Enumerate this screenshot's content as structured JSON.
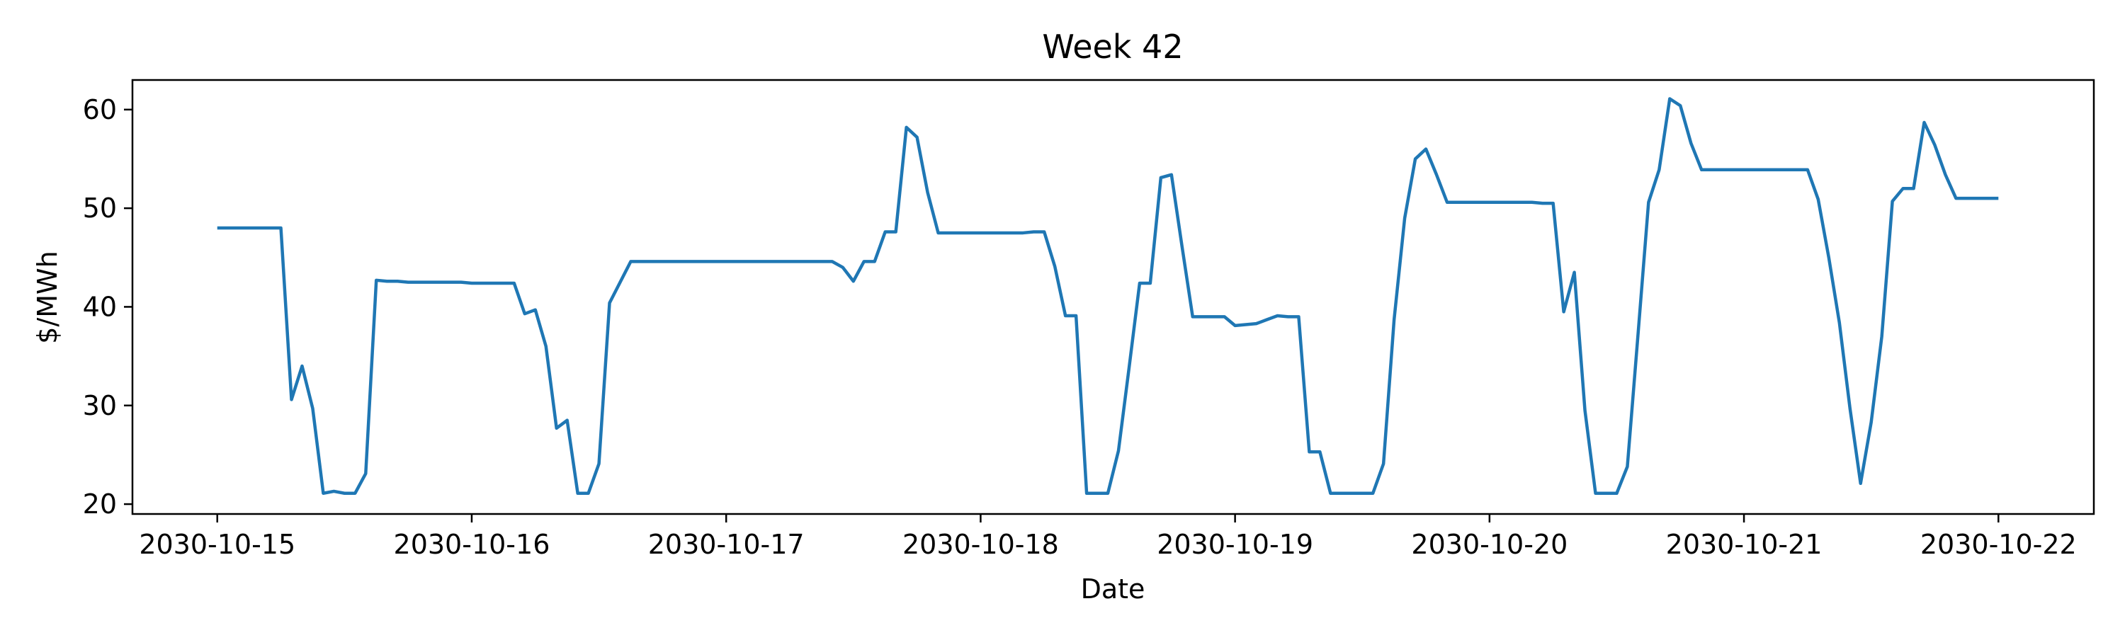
{
  "chart_data": {
    "type": "line",
    "title": "Week 42",
    "xlabel": "Date",
    "ylabel": "$/MWh",
    "x_tick_labels": [
      "2030-10-15",
      "2030-10-16",
      "2030-10-17",
      "2030-10-18",
      "2030-10-19",
      "2030-10-20",
      "2030-10-21",
      "2030-10-22"
    ],
    "y_ticks": [
      20,
      30,
      40,
      50,
      60
    ],
    "xlim": [
      "2030-10-14 16:00",
      "2030-10-22 09:00"
    ],
    "ylim": [
      19.0,
      63.0
    ],
    "grid": false,
    "colors": {
      "line": "#1f77b4",
      "axes": "#000000",
      "background": "#ffffff"
    },
    "series": [
      {
        "x": [
          "2030-10-15 00:00",
          "2030-10-15 01:00",
          "2030-10-15 02:00",
          "2030-10-15 03:00",
          "2030-10-15 04:00",
          "2030-10-15 05:00",
          "2030-10-15 06:00",
          "2030-10-15 07:00",
          "2030-10-15 08:00",
          "2030-10-15 09:00",
          "2030-10-15 10:00",
          "2030-10-15 11:00",
          "2030-10-15 12:00",
          "2030-10-15 13:00",
          "2030-10-15 14:00",
          "2030-10-15 15:00",
          "2030-10-15 16:00",
          "2030-10-15 17:00",
          "2030-10-15 18:00",
          "2030-10-15 19:00",
          "2030-10-15 20:00",
          "2030-10-15 21:00",
          "2030-10-15 22:00",
          "2030-10-15 23:00",
          "2030-10-16 00:00",
          "2030-10-16 01:00",
          "2030-10-16 02:00",
          "2030-10-16 03:00",
          "2030-10-16 04:00",
          "2030-10-16 05:00",
          "2030-10-16 06:00",
          "2030-10-16 07:00",
          "2030-10-16 08:00",
          "2030-10-16 09:00",
          "2030-10-16 10:00",
          "2030-10-16 11:00",
          "2030-10-16 12:00",
          "2030-10-16 13:00",
          "2030-10-16 14:00",
          "2030-10-16 15:00",
          "2030-10-16 16:00",
          "2030-10-16 17:00",
          "2030-10-16 18:00",
          "2030-10-16 19:00",
          "2030-10-16 20:00",
          "2030-10-16 21:00",
          "2030-10-16 22:00",
          "2030-10-16 23:00",
          "2030-10-17 00:00",
          "2030-10-17 01:00",
          "2030-10-17 02:00",
          "2030-10-17 03:00",
          "2030-10-17 04:00",
          "2030-10-17 05:00",
          "2030-10-17 06:00",
          "2030-10-17 07:00",
          "2030-10-17 08:00",
          "2030-10-17 09:00",
          "2030-10-17 10:00",
          "2030-10-17 11:00",
          "2030-10-17 12:00",
          "2030-10-17 13:00",
          "2030-10-17 14:00",
          "2030-10-17 15:00",
          "2030-10-17 16:00",
          "2030-10-17 17:00",
          "2030-10-17 18:00",
          "2030-10-17 19:00",
          "2030-10-17 20:00",
          "2030-10-17 21:00",
          "2030-10-17 22:00",
          "2030-10-17 23:00",
          "2030-10-18 00:00",
          "2030-10-18 01:00",
          "2030-10-18 02:00",
          "2030-10-18 03:00",
          "2030-10-18 04:00",
          "2030-10-18 05:00",
          "2030-10-18 06:00",
          "2030-10-18 07:00",
          "2030-10-18 08:00",
          "2030-10-18 09:00",
          "2030-10-18 10:00",
          "2030-10-18 11:00",
          "2030-10-18 12:00",
          "2030-10-18 13:00",
          "2030-10-18 14:00",
          "2030-10-18 15:00",
          "2030-10-18 16:00",
          "2030-10-18 17:00",
          "2030-10-18 18:00",
          "2030-10-18 19:00",
          "2030-10-18 20:00",
          "2030-10-18 21:00",
          "2030-10-18 22:00",
          "2030-10-18 23:00",
          "2030-10-19 00:00",
          "2030-10-19 01:00",
          "2030-10-19 02:00",
          "2030-10-19 03:00",
          "2030-10-19 04:00",
          "2030-10-19 05:00",
          "2030-10-19 06:00",
          "2030-10-19 07:00",
          "2030-10-19 08:00",
          "2030-10-19 09:00",
          "2030-10-19 10:00",
          "2030-10-19 11:00",
          "2030-10-19 12:00",
          "2030-10-19 13:00",
          "2030-10-19 14:00",
          "2030-10-19 15:00",
          "2030-10-19 16:00",
          "2030-10-19 17:00",
          "2030-10-19 18:00",
          "2030-10-19 19:00",
          "2030-10-19 20:00",
          "2030-10-19 21:00",
          "2030-10-19 22:00",
          "2030-10-19 23:00",
          "2030-10-20 00:00",
          "2030-10-20 01:00",
          "2030-10-20 02:00",
          "2030-10-20 03:00",
          "2030-10-20 04:00",
          "2030-10-20 05:00",
          "2030-10-20 06:00",
          "2030-10-20 07:00",
          "2030-10-20 08:00",
          "2030-10-20 09:00",
          "2030-10-20 10:00",
          "2030-10-20 11:00",
          "2030-10-20 12:00",
          "2030-10-20 13:00",
          "2030-10-20 14:00",
          "2030-10-20 15:00",
          "2030-10-20 16:00",
          "2030-10-20 17:00",
          "2030-10-20 18:00",
          "2030-10-20 19:00",
          "2030-10-20 20:00",
          "2030-10-20 21:00",
          "2030-10-20 22:00",
          "2030-10-20 23:00",
          "2030-10-21 00:00",
          "2030-10-21 01:00",
          "2030-10-21 02:00",
          "2030-10-21 03:00",
          "2030-10-21 04:00",
          "2030-10-21 05:00",
          "2030-10-21 06:00",
          "2030-10-21 07:00",
          "2030-10-21 08:00",
          "2030-10-21 09:00",
          "2030-10-21 10:00",
          "2030-10-21 11:00",
          "2030-10-21 12:00",
          "2030-10-21 13:00",
          "2030-10-21 14:00",
          "2030-10-21 15:00",
          "2030-10-21 16:00",
          "2030-10-21 17:00",
          "2030-10-21 18:00",
          "2030-10-21 19:00",
          "2030-10-21 20:00",
          "2030-10-21 21:00",
          "2030-10-21 22:00",
          "2030-10-21 23:00",
          "2030-10-22 00:00"
        ],
        "y": [
          48.0,
          48.0,
          48.0,
          48.0,
          48.0,
          48.0,
          48.0,
          30.6,
          34.0,
          29.7,
          21.1,
          21.3,
          21.1,
          21.1,
          23.1,
          42.7,
          42.6,
          42.6,
          42.5,
          42.5,
          42.5,
          42.5,
          42.5,
          42.5,
          42.4,
          42.4,
          42.4,
          42.4,
          42.4,
          39.3,
          39.7,
          36.0,
          27.7,
          28.5,
          21.1,
          21.1,
          24.1,
          40.4,
          42.5,
          44.6,
          44.6,
          44.6,
          44.6,
          44.6,
          44.6,
          44.6,
          44.6,
          44.6,
          44.6,
          44.6,
          44.6,
          44.6,
          44.6,
          44.6,
          44.6,
          44.6,
          44.6,
          44.6,
          44.6,
          44.0,
          42.6,
          44.6,
          44.6,
          47.6,
          47.6,
          58.2,
          57.2,
          51.6,
          47.5,
          47.5,
          47.5,
          47.5,
          47.5,
          47.5,
          47.5,
          47.5,
          47.5,
          47.6,
          47.6,
          44.1,
          39.1,
          39.1,
          21.1,
          21.1,
          21.1,
          25.4,
          33.8,
          42.4,
          42.4,
          53.1,
          53.4,
          46.1,
          39.0,
          39.0,
          39.0,
          39.0,
          38.1,
          38.2,
          38.3,
          38.7,
          39.1,
          39.0,
          39.0,
          25.3,
          25.3,
          21.1,
          21.1,
          21.1,
          21.1,
          21.1,
          24.1,
          38.7,
          49.0,
          55.0,
          56.0,
          53.4,
          50.6,
          50.6,
          50.6,
          50.6,
          50.6,
          50.6,
          50.6,
          50.6,
          50.6,
          50.5,
          50.5,
          39.5,
          43.5,
          29.5,
          21.1,
          21.1,
          21.1,
          23.8,
          37.1,
          50.6,
          53.9,
          61.1,
          60.4,
          56.6,
          53.9,
          53.9,
          53.9,
          53.9,
          53.9,
          53.9,
          53.9,
          53.9,
          53.9,
          53.9,
          53.9,
          50.9,
          45.0,
          38.4,
          29.7,
          22.1,
          28.3,
          37.0,
          50.7,
          52.0,
          52.0,
          58.7,
          56.4,
          53.4,
          51.0,
          51.0,
          51.0,
          51.0,
          51.0
        ]
      }
    ]
  }
}
